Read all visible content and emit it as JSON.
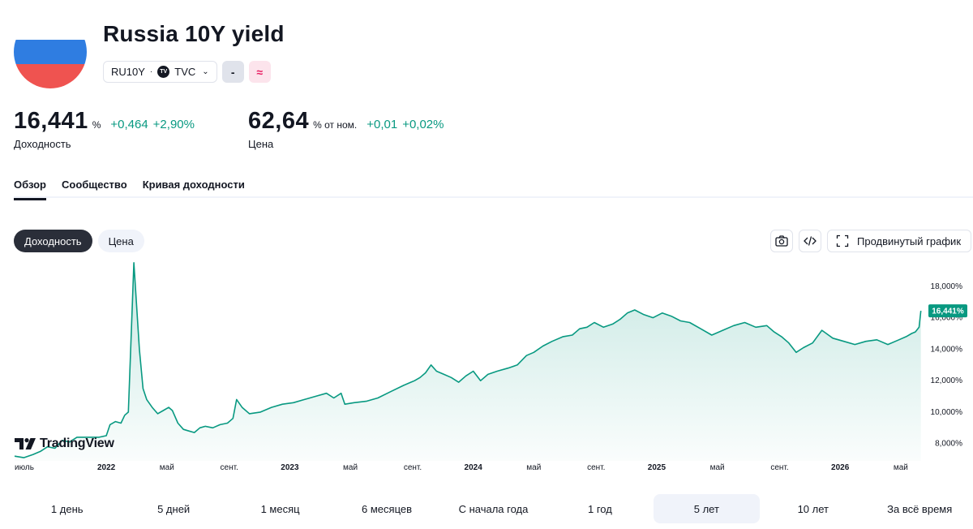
{
  "header": {
    "title": "Russia 10Y yield",
    "symbol": "RU10Y",
    "separator": "·",
    "exchange": "TVC",
    "exchange_logo": "TV",
    "badge_1": "-",
    "badge_2": "≈"
  },
  "quotes": {
    "yield": {
      "value": "16,441",
      "unit": "%",
      "change": "+0,464",
      "change_pct": "+2,90%",
      "label": "Доходность"
    },
    "price": {
      "value": "62,64",
      "unit": "% от ном.",
      "change": "+0,01",
      "change_pct": "+0,02%",
      "label": "Цена"
    },
    "positive_color": "#089981"
  },
  "tabs": [
    "Обзор",
    "Сообщество",
    "Кривая доходности"
  ],
  "chart_toggle": {
    "active": "Доходность",
    "inactive": "Цена"
  },
  "toolbar": {
    "advanced_label": "Продвинутый график",
    "icons": [
      "camera-icon",
      "code-icon",
      "fullscreen-icon"
    ]
  },
  "brand": {
    "name": "TradingView"
  },
  "ranges": [
    "1 день",
    "5 дней",
    "1 месяц",
    "6 месяцев",
    "С начала года",
    "1 год",
    "5 лет",
    "10 лет",
    "За всё время"
  ],
  "active_range": "5 лет",
  "chart_data": {
    "type": "area",
    "line_color": "#089981",
    "y_ticks": [
      "8,000%",
      "10,000%",
      "12,000%",
      "14,000%",
      "16,000%",
      "18,000%"
    ],
    "y_tick_values": [
      8,
      10,
      12,
      14,
      16,
      18
    ],
    "ylim": [
      6.9,
      19.8
    ],
    "x_tick_labels": [
      "июль",
      "2022",
      "май",
      "сент.",
      "2023",
      "май",
      "сент.",
      "2024",
      "май",
      "сент.",
      "2025",
      "май",
      "сент.",
      "2026",
      "май"
    ],
    "x_tick_values": [
      2021.5,
      2022.0,
      2022.33,
      2022.67,
      2023.0,
      2023.33,
      2023.67,
      2024.0,
      2024.33,
      2024.67,
      2025.0,
      2025.33,
      2025.67,
      2026.0,
      2026.33
    ],
    "xlim": [
      2021.5,
      2026.45
    ],
    "last_value_label": "16,441%",
    "last_value": 16.441,
    "grid": false,
    "series": [
      {
        "x": [
          2021.5,
          2021.55,
          2021.6,
          2021.64,
          2021.68,
          2021.72,
          2021.76,
          2021.8,
          2021.84,
          2021.88,
          2021.92,
          2021.96,
          2022.0,
          2022.02,
          2022.05,
          2022.08,
          2022.1,
          2022.12,
          2022.15,
          2022.18,
          2022.2,
          2022.22,
          2022.25,
          2022.28,
          2022.31,
          2022.34,
          2022.36,
          2022.39,
          2022.42,
          2022.45,
          2022.48,
          2022.51,
          2022.54,
          2022.58,
          2022.62,
          2022.66,
          2022.69,
          2022.71,
          2022.74,
          2022.78,
          2022.84,
          2022.9,
          2022.96,
          2023.02,
          2023.08,
          2023.14,
          2023.2,
          2023.24,
          2023.28,
          2023.3,
          2023.35,
          2023.42,
          2023.48,
          2023.55,
          2023.62,
          2023.68,
          2023.71,
          2023.74,
          2023.77,
          2023.8,
          2023.84,
          2023.88,
          2023.92,
          2023.96,
          2024.0,
          2024.04,
          2024.08,
          2024.13,
          2024.19,
          2024.24,
          2024.29,
          2024.33,
          2024.38,
          2024.43,
          2024.49,
          2024.54,
          2024.58,
          2024.62,
          2024.66,
          2024.71,
          2024.76,
          2024.8,
          2024.84,
          2024.88,
          2024.93,
          2024.98,
          2025.03,
          2025.08,
          2025.13,
          2025.18,
          2025.24,
          2025.3,
          2025.36,
          2025.42,
          2025.48,
          2025.54,
          2025.6,
          2025.64,
          2025.68,
          2025.72,
          2025.76,
          2025.8,
          2025.85,
          2025.9,
          2025.96,
          2026.02,
          2026.08,
          2026.14,
          2026.2,
          2026.26,
          2026.32,
          2026.36,
          2026.39,
          2026.41,
          2026.43,
          2026.44
        ],
        "y": [
          7.2,
          7.1,
          7.3,
          7.5,
          7.8,
          7.7,
          8.2,
          8.1,
          8.4,
          8.4,
          8.4,
          8.4,
          8.5,
          9.2,
          9.4,
          9.3,
          9.8,
          10.0,
          19.5,
          14.0,
          11.5,
          10.8,
          10.3,
          9.9,
          10.1,
          10.3,
          10.1,
          9.3,
          8.9,
          8.8,
          8.7,
          9.0,
          9.1,
          9.0,
          9.2,
          9.3,
          9.6,
          10.8,
          10.3,
          9.9,
          10.0,
          10.3,
          10.5,
          10.6,
          10.8,
          11.0,
          11.2,
          10.9,
          11.2,
          10.5,
          10.6,
          10.7,
          10.9,
          11.3,
          11.7,
          12.0,
          12.2,
          12.5,
          13.0,
          12.6,
          12.4,
          12.2,
          11.9,
          12.3,
          12.6,
          12.0,
          12.4,
          12.6,
          12.8,
          13.0,
          13.6,
          13.8,
          14.2,
          14.5,
          14.8,
          14.9,
          15.3,
          15.4,
          15.7,
          15.4,
          15.6,
          15.9,
          16.3,
          16.5,
          16.2,
          16.0,
          16.3,
          16.1,
          15.8,
          15.7,
          15.3,
          14.9,
          15.2,
          15.5,
          15.7,
          15.4,
          15.5,
          15.1,
          14.8,
          14.4,
          13.8,
          14.1,
          14.4,
          15.2,
          14.7,
          14.5,
          14.3,
          14.5,
          14.6,
          14.3,
          14.6,
          14.8,
          15.0,
          15.1,
          15.4,
          16.441
        ]
      }
    ]
  }
}
